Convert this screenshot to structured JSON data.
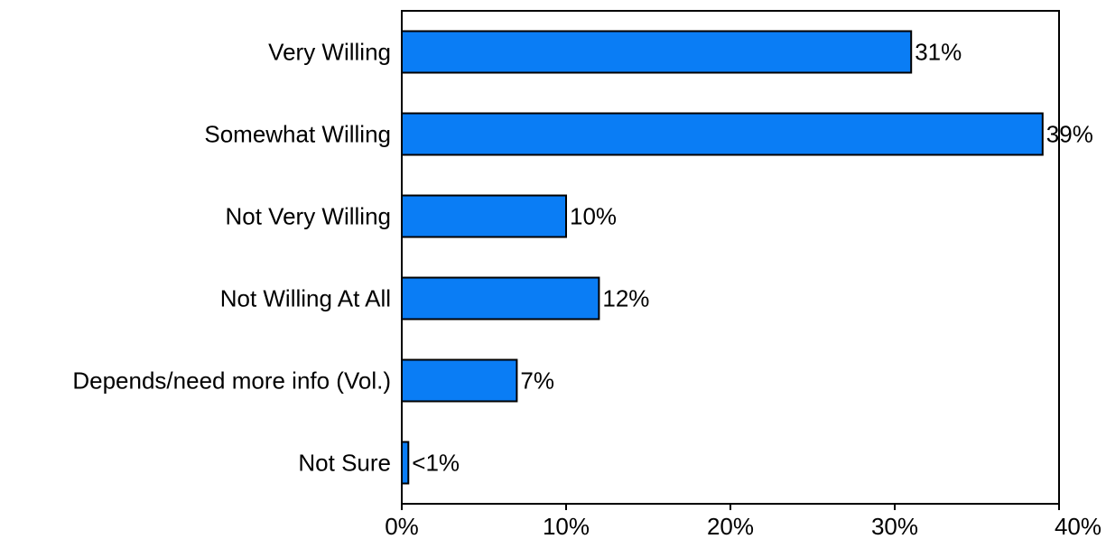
{
  "chart_data": {
    "type": "bar",
    "orientation": "horizontal",
    "categories": [
      "Very Willing",
      "Somewhat Willing",
      "Not Very Willing",
      "Not Willing At All",
      "Depends/need more info (Vol.)",
      "Not Sure"
    ],
    "values": [
      31,
      39,
      10,
      12,
      7,
      0.4
    ],
    "value_labels": [
      "31%",
      "39%",
      "10%",
      "12%",
      "7%",
      "<1%"
    ],
    "xlim": [
      0,
      40
    ],
    "x_ticks": [
      0,
      10,
      20,
      30,
      40
    ],
    "x_tick_labels": [
      "0%",
      "10%",
      "20%",
      "30%",
      "40%"
    ],
    "title": "",
    "xlabel": "",
    "ylabel": "",
    "grid": false,
    "legend": "none",
    "bar_color": "#0a7df5",
    "bar_edge_color": "#000000"
  }
}
